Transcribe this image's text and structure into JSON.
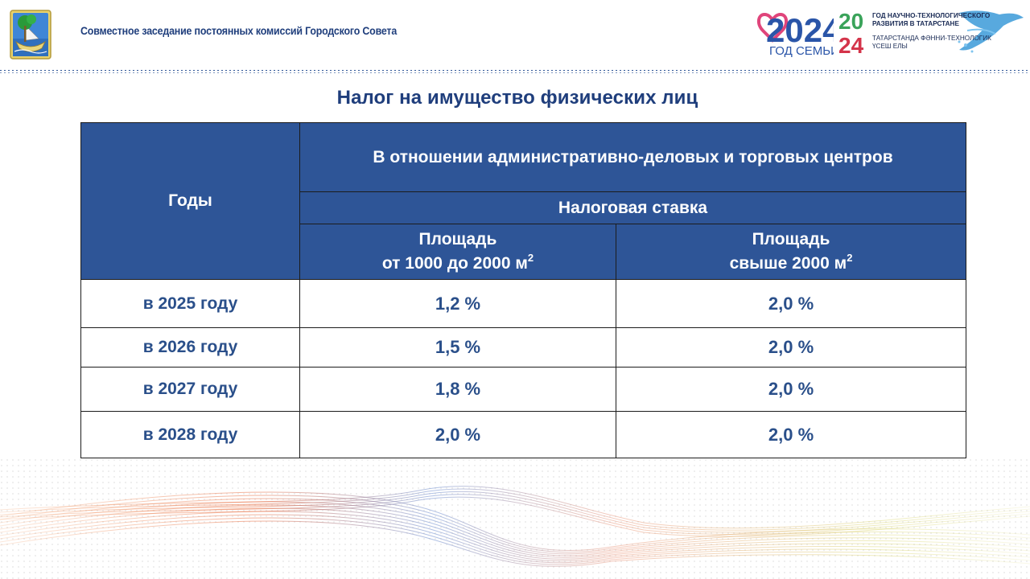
{
  "header": {
    "title": "Совместное заседание постоянных комиссий Городского Совета"
  },
  "logos": {
    "family_year": "2024",
    "family_caption": "ГОД СЕМЬИ",
    "tech_year_top": "20",
    "tech_year_bottom": "24",
    "tech_lines": [
      "ГОД НАУЧНО-ТЕХНОЛОГИЧЕСКОГО",
      "РАЗВИТИЯ В ТАТАРСТАНЕ",
      "ТАТАРСТАНДА ФӘННИ-ТЕХНОЛОГИК",
      "ҮСЕШ ЕЛЫ"
    ]
  },
  "page_title": "Налог на имущество физических лиц",
  "table": {
    "col_years": "Годы",
    "col_group": "В отношении административно-деловых и торговых центров",
    "col_subgroup": "Налоговая ставка",
    "col_a_line1": "Площадь",
    "col_a_line2": "от 1000 до 2000 м",
    "col_a_sup": "2",
    "col_b_line1": "Площадь",
    "col_b_line2": "свыше 2000 м",
    "col_b_sup": "2",
    "rows": [
      {
        "year": "в 2025 году",
        "a": "1,2 %",
        "b": "2,0 %"
      },
      {
        "year": "в 2026 году",
        "a": "1,5 %",
        "b": "2,0 %"
      },
      {
        "year": "в 2027 году",
        "a": "1,8 %",
        "b": "2,0 %"
      },
      {
        "year": "в 2028 году",
        "a": "2,0 %",
        "b": "2,0 %"
      }
    ]
  },
  "colors": {
    "primary_blue": "#2e5597",
    "text_blue": "#2a4f8a",
    "title_blue": "#1f3e7c"
  }
}
